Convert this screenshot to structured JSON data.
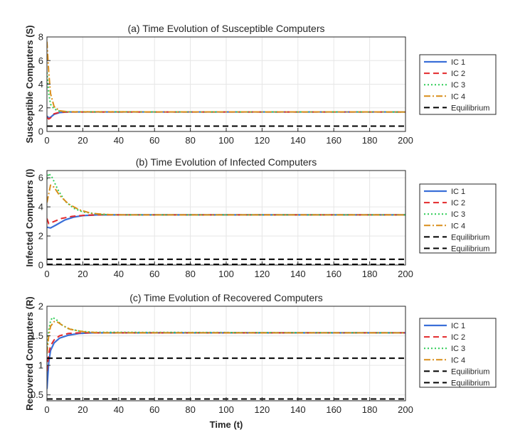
{
  "colors": {
    "ic1": "#3a6fd8",
    "ic2": "#e3292b",
    "ic3": "#2ecc55",
    "ic4": "#d98e1a",
    "equilibrium": "#000000",
    "grid": "#e6e6e6",
    "axis": "#262626"
  },
  "chart_data": [
    {
      "type": "line",
      "title": "(a) Time Evolution of Susceptible Computers",
      "ylabel": "Susceptible Computers (S)",
      "xlabel": "",
      "xlim": [
        0,
        200
      ],
      "ylim": [
        0,
        8
      ],
      "xticks": [
        0,
        20,
        40,
        60,
        80,
        100,
        120,
        140,
        160,
        180,
        200
      ],
      "yticks": [
        0,
        2,
        4,
        6,
        8
      ],
      "legend_position": "outside-right",
      "series": [
        {
          "name": "IC 1",
          "style": "solid",
          "color_key": "ic1",
          "points": [
            [
              0,
              1.3
            ],
            [
              1,
              1.15
            ],
            [
              2,
              1.2
            ],
            [
              4,
              1.45
            ],
            [
              7,
              1.6
            ],
            [
              12,
              1.65
            ],
            [
              200,
              1.65
            ]
          ]
        },
        {
          "name": "IC 2",
          "style": "dashed",
          "color_key": "ic2",
          "points": [
            [
              0,
              1.2
            ],
            [
              1,
              1.05
            ],
            [
              2,
              1.15
            ],
            [
              4,
              1.5
            ],
            [
              7,
              1.62
            ],
            [
              12,
              1.65
            ],
            [
              200,
              1.65
            ]
          ]
        },
        {
          "name": "IC 3",
          "style": "dotted",
          "color_key": "ic3",
          "points": [
            [
              0,
              5.0
            ],
            [
              1,
              3.2
            ],
            [
              2,
              2.3
            ],
            [
              4,
              1.9
            ],
            [
              7,
              1.72
            ],
            [
              12,
              1.66
            ],
            [
              200,
              1.65
            ]
          ]
        },
        {
          "name": "IC 4",
          "style": "dashdot",
          "color_key": "ic4",
          "points": [
            [
              0,
              7.6
            ],
            [
              1,
              5.0
            ],
            [
              2,
              3.2
            ],
            [
              4,
              2.1
            ],
            [
              7,
              1.75
            ],
            [
              12,
              1.66
            ],
            [
              200,
              1.65
            ]
          ]
        },
        {
          "name": "Equilibrium",
          "style": "dashed",
          "color_key": "equilibrium",
          "points": [
            [
              0,
              0.45
            ],
            [
              200,
              0.45
            ]
          ]
        }
      ]
    },
    {
      "type": "line",
      "title": "(b) Time Evolution of Infected Computers",
      "ylabel": "Infected Computers (I)",
      "xlabel": "",
      "xlim": [
        0,
        200
      ],
      "ylim": [
        0,
        6.5
      ],
      "xticks": [
        0,
        20,
        40,
        60,
        80,
        100,
        120,
        140,
        160,
        180,
        200
      ],
      "yticks": [
        0,
        2,
        4,
        6
      ],
      "legend_position": "outside-right",
      "series": [
        {
          "name": "IC 1",
          "style": "solid",
          "color_key": "ic1",
          "points": [
            [
              0,
              2.6
            ],
            [
              2,
              2.55
            ],
            [
              5,
              2.75
            ],
            [
              10,
              3.1
            ],
            [
              15,
              3.3
            ],
            [
              20,
              3.4
            ],
            [
              28,
              3.45
            ],
            [
              200,
              3.45
            ]
          ]
        },
        {
          "name": "IC 2",
          "style": "dashed",
          "color_key": "ic2",
          "points": [
            [
              0,
              3.2
            ],
            [
              1,
              2.85
            ],
            [
              3,
              2.95
            ],
            [
              8,
              3.2
            ],
            [
              14,
              3.35
            ],
            [
              22,
              3.43
            ],
            [
              30,
              3.45
            ],
            [
              200,
              3.45
            ]
          ]
        },
        {
          "name": "IC 3",
          "style": "dotted",
          "color_key": "ic3",
          "points": [
            [
              0,
              5.9
            ],
            [
              1,
              6.3
            ],
            [
              3,
              6.0
            ],
            [
              6,
              5.2
            ],
            [
              10,
              4.4
            ],
            [
              15,
              3.9
            ],
            [
              20,
              3.65
            ],
            [
              30,
              3.48
            ],
            [
              40,
              3.45
            ],
            [
              200,
              3.45
            ]
          ]
        },
        {
          "name": "IC 4",
          "style": "dashdot",
          "color_key": "ic4",
          "points": [
            [
              0,
              4.3
            ],
            [
              2,
              5.5
            ],
            [
              4,
              5.35
            ],
            [
              7,
              4.8
            ],
            [
              12,
              4.2
            ],
            [
              18,
              3.8
            ],
            [
              25,
              3.55
            ],
            [
              35,
              3.47
            ],
            [
              45,
              3.45
            ],
            [
              200,
              3.45
            ]
          ]
        },
        {
          "name": "Equilibrium",
          "style": "dashed",
          "color_key": "equilibrium",
          "points": [
            [
              0,
              0.4
            ],
            [
              200,
              0.4
            ]
          ]
        },
        {
          "name": "Equilibrium",
          "style": "dashed",
          "color_key": "equilibrium",
          "points": [
            [
              0,
              0.05
            ],
            [
              200,
              0.05
            ]
          ]
        }
      ]
    },
    {
      "type": "line",
      "title": "(c) Time Evolution of Recovered Computers",
      "ylabel": "Recovered Computers (R)",
      "xlabel": "Time (t)",
      "xlim": [
        0,
        200
      ],
      "ylim": [
        0.4,
        2
      ],
      "xticks": [
        0,
        20,
        40,
        60,
        80,
        100,
        120,
        140,
        160,
        180,
        200
      ],
      "yticks": [
        0.5,
        1,
        1.5,
        2
      ],
      "legend_position": "outside-right",
      "series": [
        {
          "name": "IC 1",
          "style": "solid",
          "color_key": "ic1",
          "points": [
            [
              0,
              0.6
            ],
            [
              1,
              1.05
            ],
            [
              2,
              1.25
            ],
            [
              4,
              1.38
            ],
            [
              7,
              1.46
            ],
            [
              12,
              1.51
            ],
            [
              18,
              1.54
            ],
            [
              25,
              1.55
            ],
            [
              200,
              1.55
            ]
          ]
        },
        {
          "name": "IC 2",
          "style": "dashed",
          "color_key": "ic2",
          "points": [
            [
              0,
              0.9
            ],
            [
              1,
              1.2
            ],
            [
              2,
              1.33
            ],
            [
              4,
              1.43
            ],
            [
              7,
              1.5
            ],
            [
              12,
              1.54
            ],
            [
              18,
              1.55
            ],
            [
              200,
              1.55
            ]
          ]
        },
        {
          "name": "IC 3",
          "style": "dotted",
          "color_key": "ic3",
          "points": [
            [
              0,
              1.3
            ],
            [
              1,
              1.6
            ],
            [
              2,
              1.75
            ],
            [
              3,
              1.81
            ],
            [
              5,
              1.78
            ],
            [
              8,
              1.69
            ],
            [
              12,
              1.62
            ],
            [
              18,
              1.58
            ],
            [
              25,
              1.56
            ],
            [
              200,
              1.55
            ]
          ]
        },
        {
          "name": "IC 4",
          "style": "dashdot",
          "color_key": "ic4",
          "points": [
            [
              0,
              1.2
            ],
            [
              1,
              1.5
            ],
            [
              2,
              1.66
            ],
            [
              4,
              1.74
            ],
            [
              6,
              1.73
            ],
            [
              9,
              1.67
            ],
            [
              13,
              1.61
            ],
            [
              20,
              1.57
            ],
            [
              30,
              1.55
            ],
            [
              200,
              1.55
            ]
          ]
        },
        {
          "name": "Equilibrium",
          "style": "dashed",
          "color_key": "equilibrium",
          "points": [
            [
              0,
              1.12
            ],
            [
              200,
              1.12
            ]
          ]
        },
        {
          "name": "Equilibrium",
          "style": "dashed",
          "color_key": "equilibrium",
          "points": [
            [
              0,
              0.43
            ],
            [
              200,
              0.43
            ]
          ]
        }
      ]
    }
  ]
}
